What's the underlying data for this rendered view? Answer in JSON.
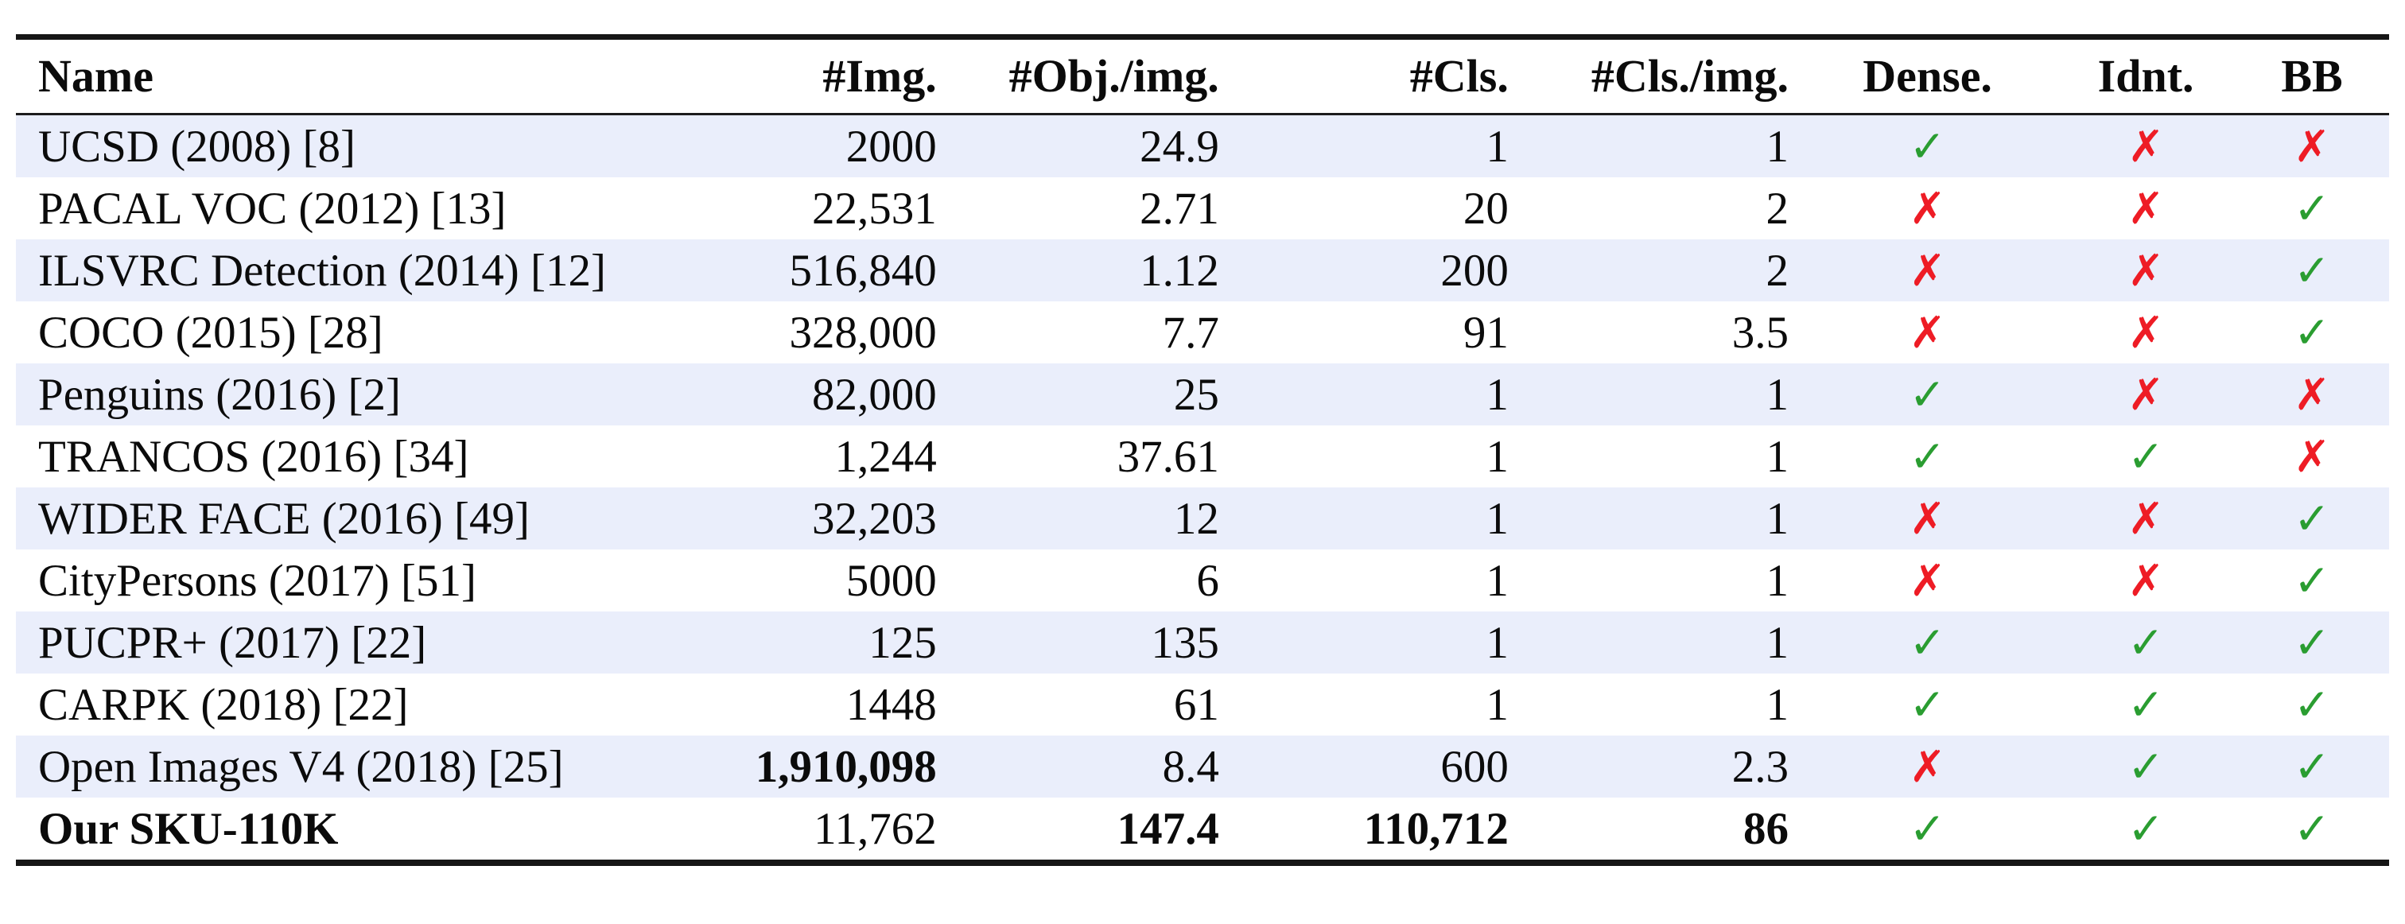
{
  "table": {
    "columns": [
      {
        "key": "name",
        "label": "Name",
        "align": "left"
      },
      {
        "key": "img",
        "label": "#Img.",
        "align": "right"
      },
      {
        "key": "obj_per_img",
        "label": "#Obj./img.",
        "align": "right"
      },
      {
        "key": "cls",
        "label": "#Cls.",
        "align": "right"
      },
      {
        "key": "cls_per_img",
        "label": "#Cls./img.",
        "align": "right"
      },
      {
        "key": "dense",
        "label": "Dense.",
        "align": "center"
      },
      {
        "key": "idnt",
        "label": "Idnt.",
        "align": "center"
      },
      {
        "key": "bb",
        "label": "BB",
        "align": "center"
      }
    ],
    "rows": [
      {
        "name": "UCSD (2008) [8]",
        "img": "2000",
        "obj_per_img": "24.9",
        "cls": "1",
        "cls_per_img": "1",
        "dense": "check",
        "idnt": "cross",
        "bb": "cross",
        "bold": []
      },
      {
        "name": "PACAL VOC (2012) [13]",
        "img": "22,531",
        "obj_per_img": "2.71",
        "cls": "20",
        "cls_per_img": "2",
        "dense": "cross",
        "idnt": "cross",
        "bb": "check",
        "bold": []
      },
      {
        "name": "ILSVRC Detection (2014) [12]",
        "img": "516,840",
        "obj_per_img": "1.12",
        "cls": "200",
        "cls_per_img": "2",
        "dense": "cross",
        "idnt": "cross",
        "bb": "check",
        "bold": []
      },
      {
        "name": "COCO (2015) [28]",
        "img": "328,000",
        "obj_per_img": "7.7",
        "cls": "91",
        "cls_per_img": "3.5",
        "dense": "cross",
        "idnt": "cross",
        "bb": "check",
        "bold": []
      },
      {
        "name": "Penguins (2016) [2]",
        "img": "82,000",
        "obj_per_img": "25",
        "cls": "1",
        "cls_per_img": "1",
        "dense": "check",
        "idnt": "cross",
        "bb": "cross",
        "bold": []
      },
      {
        "name": "TRANCOS (2016) [34]",
        "img": "1,244",
        "obj_per_img": "37.61",
        "cls": "1",
        "cls_per_img": "1",
        "dense": "check",
        "idnt": "check",
        "bb": "cross",
        "bold": []
      },
      {
        "name": "WIDER FACE (2016) [49]",
        "img": "32,203",
        "obj_per_img": "12",
        "cls": "1",
        "cls_per_img": "1",
        "dense": "cross",
        "idnt": "cross",
        "bb": "check",
        "bold": []
      },
      {
        "name": "CityPersons (2017) [51]",
        "img": "5000",
        "obj_per_img": "6",
        "cls": "1",
        "cls_per_img": "1",
        "dense": "cross",
        "idnt": "cross",
        "bb": "check",
        "bold": []
      },
      {
        "name": "PUCPR+ (2017) [22]",
        "img": "125",
        "obj_per_img": "135",
        "cls": "1",
        "cls_per_img": "1",
        "dense": "check",
        "idnt": "check",
        "bb": "check",
        "bold": []
      },
      {
        "name": "CARPK (2018) [22]",
        "img": "1448",
        "obj_per_img": "61",
        "cls": "1",
        "cls_per_img": "1",
        "dense": "check",
        "idnt": "check",
        "bb": "check",
        "bold": []
      },
      {
        "name": "Open Images V4 (2018) [25]",
        "img": "1,910,098",
        "obj_per_img": "8.4",
        "cls": "600",
        "cls_per_img": "2.3",
        "dense": "cross",
        "idnt": "check",
        "bb": "check",
        "bold": [
          "img"
        ]
      },
      {
        "name": "Our SKU-110K",
        "img": "11,762",
        "obj_per_img": "147.4",
        "cls": "110,712",
        "cls_per_img": "86",
        "dense": "check",
        "idnt": "check",
        "bb": "check",
        "bold": [
          "name",
          "obj_per_img",
          "cls",
          "cls_per_img"
        ]
      }
    ]
  },
  "marks": {
    "check": {
      "glyph": "✓",
      "color": "#2a9d31",
      "name": "check-icon"
    },
    "cross": {
      "glyph": "✗",
      "color": "#ee1c25",
      "name": "cross-icon"
    }
  },
  "colors": {
    "stripe": "#eaeefb",
    "rule": "#161616",
    "text": "#0b0b0b"
  }
}
